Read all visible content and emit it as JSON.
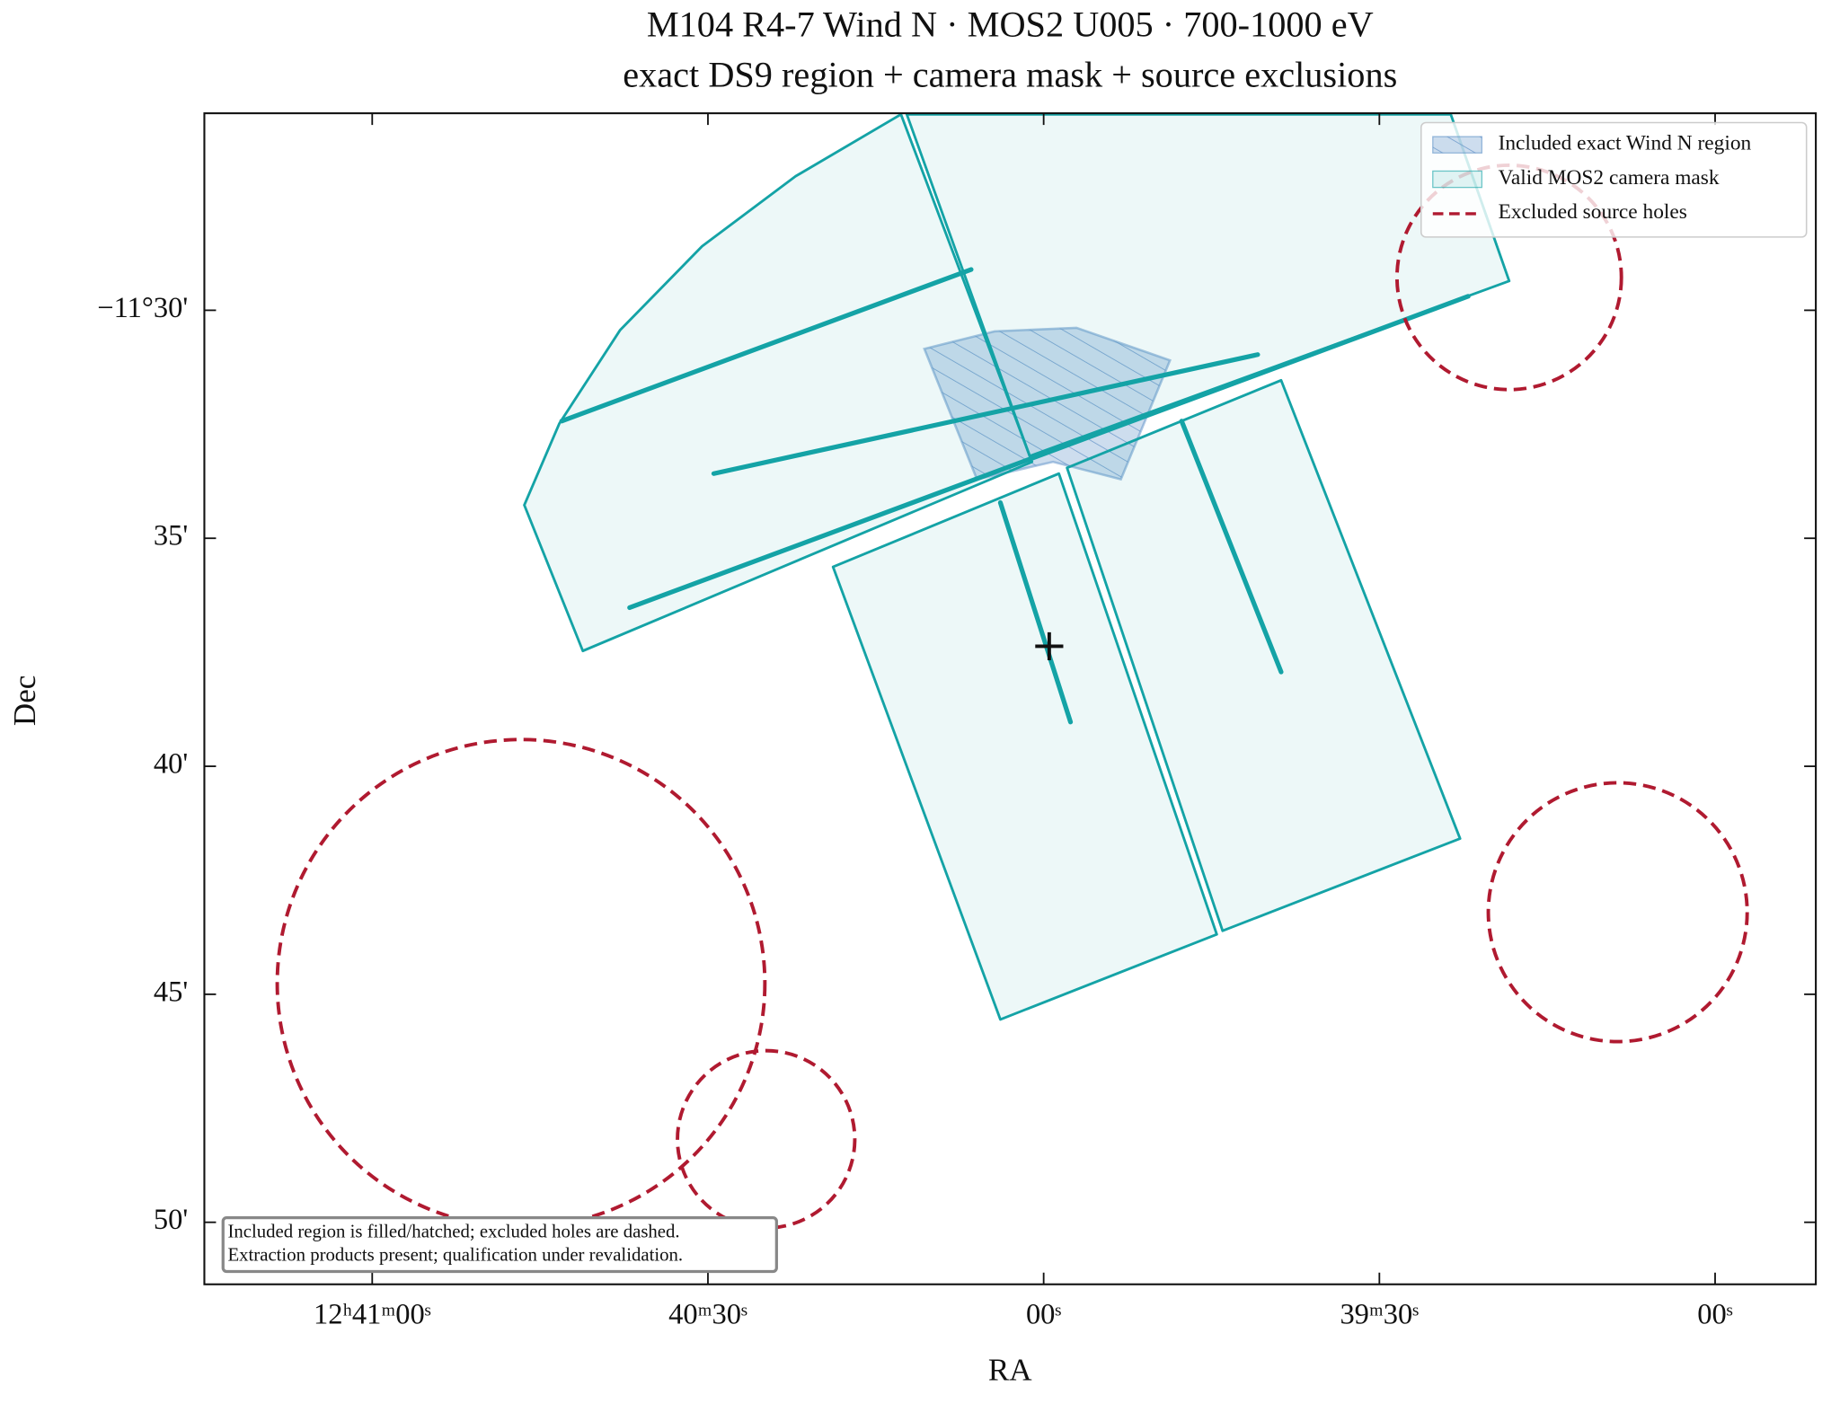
{
  "chart_data": {
    "type": "region",
    "title": [
      "M104 R4-7 Wind N · MOS2 U005 · 700-1000 eV",
      "exact DS9 region + camera mask + source exclusions"
    ],
    "xlabel": "RA",
    "ylabel": "Dec",
    "xlim": [
      45675,
      45531
    ],
    "ylim": [
      -11.856,
      -11.428
    ],
    "xticks": [
      {
        "value": 45660,
        "label": "12ʰ41ᵐ00ˢ"
      },
      {
        "value": 45630,
        "label": "40ᵐ30ˢ"
      },
      {
        "value": 45600,
        "label": "00ˢ"
      },
      {
        "value": 45570,
        "label": "39ᵐ30ˢ"
      },
      {
        "value": 45540,
        "label": "00ˢ"
      }
    ],
    "yticks": [
      {
        "value": -11.5,
        "label": "−11°30'"
      },
      {
        "value": -11.58333,
        "label": "35'"
      },
      {
        "value": -11.66667,
        "label": "40'"
      },
      {
        "value": -11.75,
        "label": "45'"
      },
      {
        "value": -11.83333,
        "label": "50'"
      }
    ],
    "legend": "upper right",
    "series": [
      {
        "name": "Included exact Wind N region",
        "color": "#5b8fc7",
        "polygons": [
          {
            "ra": [
              45610.66,
              45604.39,
              45597.07,
              45588.71,
              45593.1,
              45599.16,
              45605.96
            ],
            "dec": [
              -11.5141,
              -11.5077,
              -11.5064,
              -11.5183,
              -11.5618,
              -11.5554,
              -11.5618
            ]
          }
        ]
      },
      {
        "name": "Valid MOS2 camera mask",
        "color": "#14a3a6",
        "polygons": [
          {
            "ra": [
              45646.41,
              45643.28,
              45637.84,
              45630.52,
              45622.16,
              45612.75,
              45601.04,
              45641.18
            ],
            "dec": [
              -11.5712,
              -11.5414,
              -11.5072,
              -11.4766,
              -11.451,
              -11.4284,
              -11.5554,
              -11.6245
            ]
          },
          {
            "ra": [
              45612.23,
              45563.62,
              45558.4,
              45601.25
            ],
            "dec": [
              -11.4284,
              -11.4284,
              -11.4893,
              -11.5533
            ]
          },
          {
            "ra": [
              45618.82,
              45598.64,
              45584.53,
              45603.87
            ],
            "dec": [
              -11.5938,
              -11.5597,
              -11.7281,
              -11.7592
            ]
          },
          {
            "ra": [
              45597.91,
              45578.78,
              45562.79,
              45584.01
            ],
            "dec": [
              -11.5576,
              -11.5256,
              -11.6931,
              -11.7268
            ]
          }
        ],
        "lines": [
          {
            "ra": [
              45643.07,
              45606.48
            ],
            "dec": [
              -11.5405,
              -11.4851
            ]
          },
          {
            "ra": [
              45637.0,
              45562.06
            ],
            "dec": [
              -11.6087,
              -11.4949
            ]
          },
          {
            "ra": [
              45629.48,
              45580.87
            ],
            "dec": [
              -11.5597,
              -11.5162
            ]
          },
          {
            "ra": [
              45603.87,
              45597.6
            ],
            "dec": [
              -11.5703,
              -11.6505
            ]
          },
          {
            "ra": [
              45587.67,
              45578.78
            ],
            "dec": [
              -11.5405,
              -11.6322
            ]
          }
        ]
      },
      {
        "name": "Excluded source holes",
        "color": "#b01a30",
        "circles": [
          {
            "ra": 45646.7,
            "dec": -11.746,
            "r": 0.0891
          },
          {
            "ra": 45624.8,
            "dec": -11.803,
            "r": 0.0324
          },
          {
            "ra": 45548.7,
            "dec": -11.72,
            "r": 0.0473
          },
          {
            "ra": 45558.4,
            "dec": -11.488,
            "r": 0.041
          }
        ]
      }
    ],
    "marker": {
      "ra": 45599.5,
      "dec": -11.6228
    },
    "annotation": [
      "Included region is filled/hatched; excluded holes are dashed.",
      "Extraction products present; qualification under revalidation."
    ]
  }
}
